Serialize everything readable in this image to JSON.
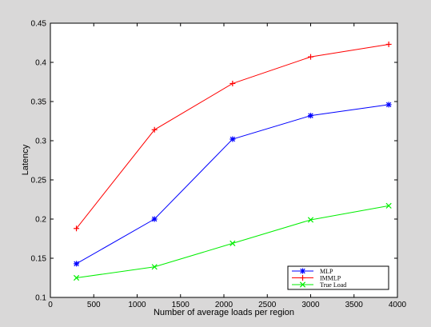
{
  "chart_data": {
    "type": "line",
    "title": "",
    "xlabel": "Number of average loads per region",
    "ylabel": "Latency",
    "xlim": [
      0,
      4000
    ],
    "ylim": [
      0.1,
      0.45
    ],
    "xticks": [
      0,
      500,
      1000,
      1500,
      2000,
      2500,
      3000,
      3500,
      4000
    ],
    "yticks": [
      0.1,
      0.15,
      0.2,
      0.25,
      0.3,
      0.35,
      0.4,
      0.45
    ],
    "xtick_labels": [
      "0",
      "500",
      "1000",
      "1500",
      "2000",
      "2500",
      "3000",
      "3500",
      "4000"
    ],
    "ytick_labels": [
      "0.1",
      "0.15",
      "0.2",
      "0.25",
      "0.3",
      "0.35",
      "0.4",
      "0.45"
    ],
    "grid": false,
    "legend_position": "bottom-right",
    "x": [
      300,
      1200,
      2100,
      3000,
      3900
    ],
    "series": [
      {
        "name": "MLP",
        "color": "#0000ff",
        "marker": "asterisk",
        "values": [
          0.143,
          0.2,
          0.302,
          0.332,
          0.346
        ]
      },
      {
        "name": "IMMLP",
        "color": "#ff0000",
        "marker": "plus",
        "values": [
          0.188,
          0.314,
          0.373,
          0.407,
          0.423
        ]
      },
      {
        "name": "True Load",
        "color": "#00ee00",
        "marker": "x",
        "values": [
          0.125,
          0.139,
          0.169,
          0.199,
          0.217
        ]
      }
    ]
  }
}
